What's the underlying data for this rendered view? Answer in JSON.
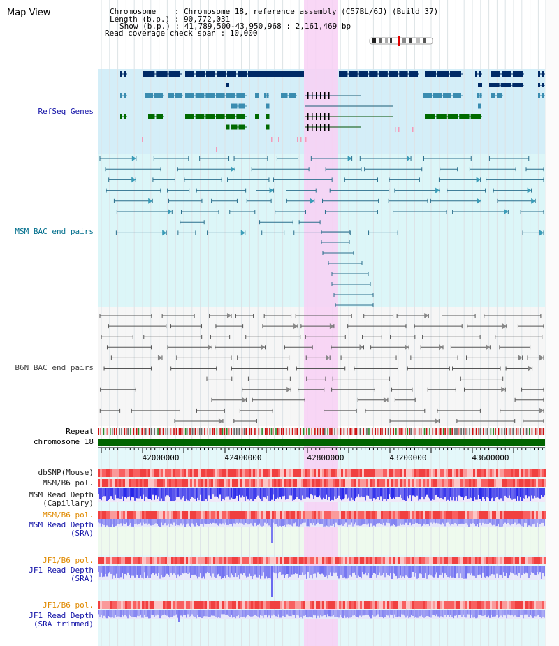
{
  "panel": {
    "title": "Map View"
  },
  "info": {
    "lines": [
      "Chromosome    : Chromosome 18, reference assembly (C57BL/6J) (Build 37)",
      "Length (b.p.) : 90,772,031",
      "Show (b.p.) : 41,789,500-43,950,968 : 2,161,469 bp",
      "Read coverage check span : 10,000"
    ]
  },
  "tracks": {
    "refseq": {
      "label": "RefSeq Genes",
      "color": "#1414a8"
    },
    "msm_bac": {
      "label": "MSM BAC end pairs",
      "color": "#006e8c"
    },
    "b6n_bac": {
      "label": "B6N BAC end pairs",
      "color": "#444444"
    },
    "repeat": {
      "label": "Repeat"
    },
    "chromosome": {
      "label": "chromosome 18",
      "color": "#006400"
    },
    "dbsnp": {
      "label": "dbSNP(Mouse)"
    },
    "msm_b6_pol": {
      "label": "MSM/B6 pol."
    },
    "msm_depth_cap": {
      "label": "MSM Read Depth",
      "sub": "(Capillary)"
    },
    "msm_b6_pol2": {
      "label": "MSM/B6 pol.",
      "color": "#e08a00"
    },
    "msm_depth_sra": {
      "label": "MSM Read Depth",
      "sub": "(SRA)",
      "color": "#1414a8"
    },
    "jf1_b6_pol": {
      "label": "JF1/B6 pol.",
      "color": "#e08a00"
    },
    "jf1_depth_sra": {
      "label": "JF1 Read Depth",
      "sub": "(SRA)",
      "color": "#1414a8"
    },
    "jf1_b6_pol2": {
      "label": "JF1/B6 pol.",
      "color": "#e08a00"
    },
    "jf1_depth_trim": {
      "label": "JF1 Read Depth",
      "sub": "(SRA trimmed)",
      "color": "#1414a8"
    }
  },
  "ruler": {
    "ticks": [
      "42000000",
      "42400000",
      "42800000",
      "43200000",
      "43600000"
    ]
  },
  "colors": {
    "highlight": "#f8d0f4",
    "gene_dark": "#002a66",
    "gene_mid": "#3a8cb0",
    "gene_green": "#006a00",
    "msm_line": "#2a6e8c",
    "depth_blue": "#1a1ae8"
  }
}
